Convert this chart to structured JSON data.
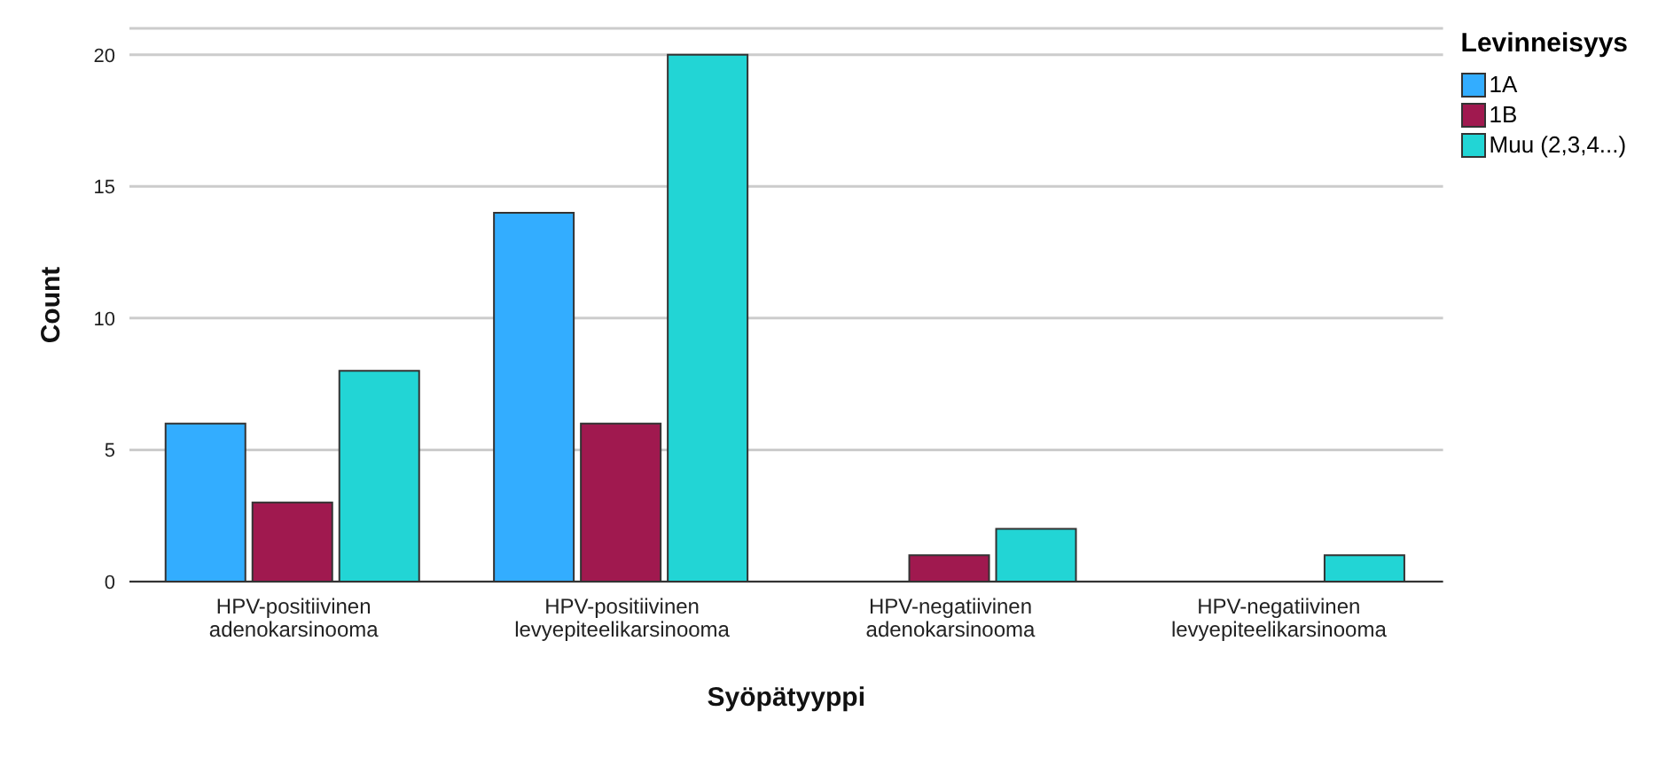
{
  "chart_data": {
    "type": "bar",
    "xlabel": "Syöpätyyppi",
    "ylabel": "Count",
    "legend_title": "Levinneisyys",
    "categories": [
      "HPV-positiivinen adenokarsinooma",
      "HPV-positiivinen levyepiteelikarsinooma",
      "HPV-negatiivinen adenokarsinooma",
      "HPV-negatiivinen levyepiteelikarsinooma"
    ],
    "series": [
      {
        "name": "1A",
        "color": "#33adff",
        "values": [
          6,
          14,
          0,
          0
        ]
      },
      {
        "name": "1B",
        "color": "#a0194f",
        "values": [
          3,
          6,
          1,
          0
        ]
      },
      {
        "name": "Muu (2,3,4...)",
        "color": "#22d5d5",
        "values": [
          8,
          20,
          2,
          1
        ]
      }
    ],
    "ylim": [
      0,
      21
    ],
    "yticks": [
      0,
      5,
      10,
      15,
      20
    ],
    "grid": "y",
    "legend": "top right"
  }
}
